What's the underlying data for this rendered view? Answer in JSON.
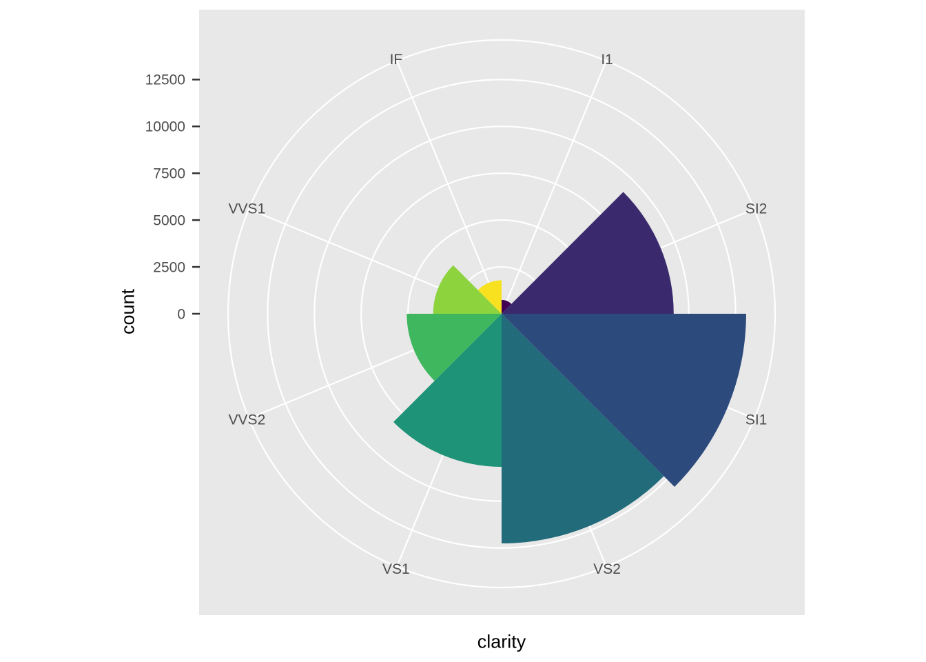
{
  "figure": {
    "background": "#FFFFFF"
  },
  "panel": {
    "background": "#E8E8E8",
    "grid_color": "#FFFFFF"
  },
  "axes": {
    "y_title": "count",
    "x_title": "clarity",
    "y_tick_labels": [
      "0",
      "2500",
      "5000",
      "7500",
      "10000",
      "12500"
    ],
    "tick_text_color": "#4D4D4D",
    "tick_mark_color": "#333333",
    "title_color": "#000000"
  },
  "chart_data": {
    "type": "bar",
    "coordinate_system": "polar",
    "title": "",
    "xlabel": "clarity",
    "ylabel": "count",
    "categories": [
      "I1",
      "SI2",
      "SI1",
      "VS2",
      "VS1",
      "VVS2",
      "VVS1",
      "IF"
    ],
    "values": [
      741,
      9194,
      13065,
      12258,
      8171,
      5066,
      3655,
      1790
    ],
    "colors": [
      "#430153",
      "#3A2A6D",
      "#2D4A7C",
      "#216B7B",
      "#1F9377",
      "#3FB75F",
      "#8CD33E",
      "#F8E220"
    ],
    "r_ticks": [
      0,
      2500,
      5000,
      7500,
      10000,
      12500
    ],
    "rlim": [
      0,
      13065
    ],
    "grid": true,
    "legend": false,
    "sector_width_deg": 45,
    "start_angle_deg": 0
  }
}
